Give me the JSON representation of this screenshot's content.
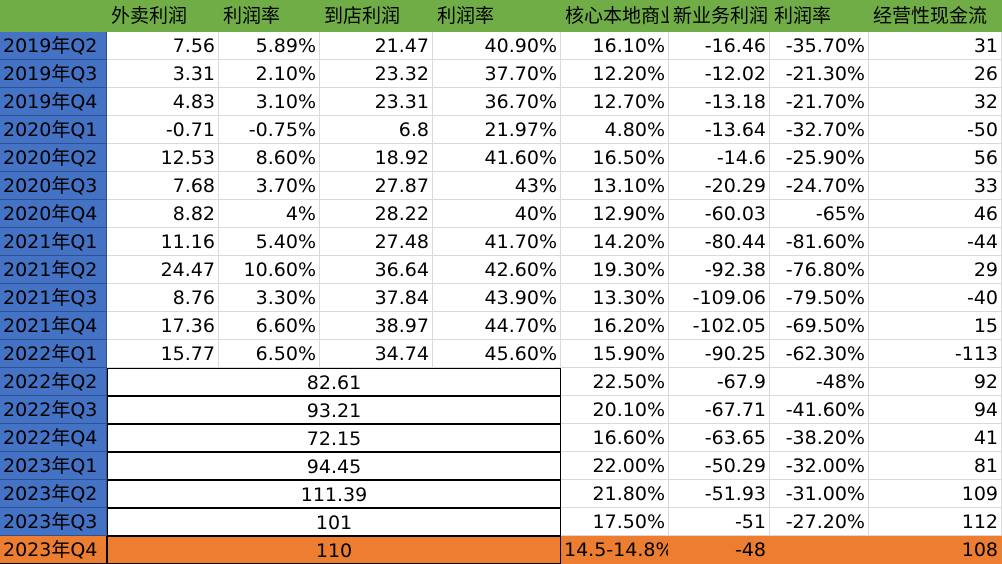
{
  "headers": [
    "外卖利润",
    "利润率",
    "到店利润",
    "利润率",
    "核心本地商业利润率",
    "新业务利润",
    "利润率",
    "经营性现金流"
  ],
  "rows": [
    {
      "label": "2019年Q2",
      "c": [
        "7.56",
        "5.89%",
        "21.47",
        "40.90%",
        "16.10%",
        "-16.46",
        "-35.70%",
        "31"
      ]
    },
    {
      "label": "2019年Q3",
      "c": [
        "3.31",
        "2.10%",
        "23.32",
        "37.70%",
        "12.20%",
        "-12.02",
        "-21.30%",
        "26"
      ]
    },
    {
      "label": "2019年Q4",
      "c": [
        "4.83",
        "3.10%",
        "23.31",
        "36.70%",
        "12.70%",
        "-13.18",
        "-21.70%",
        "32"
      ]
    },
    {
      "label": "2020年Q1",
      "c": [
        "-0.71",
        "-0.75%",
        "6.8",
        "21.97%",
        "4.80%",
        "-13.64",
        "-32.70%",
        "-50"
      ]
    },
    {
      "label": "2020年Q2",
      "c": [
        "12.53",
        "8.60%",
        "18.92",
        "41.60%",
        "16.50%",
        "-14.6",
        "-25.90%",
        "56"
      ]
    },
    {
      "label": "2020年Q3",
      "c": [
        "7.68",
        "3.70%",
        "27.87",
        "43%",
        "13.10%",
        "-20.29",
        "-24.70%",
        "33"
      ]
    },
    {
      "label": "2020年Q4",
      "c": [
        "8.82",
        "4%",
        "28.22",
        "40%",
        "12.90%",
        "-60.03",
        "-65%",
        "46"
      ]
    },
    {
      "label": "2021年Q1",
      "c": [
        "11.16",
        "5.40%",
        "27.48",
        "41.70%",
        "14.20%",
        "-80.44",
        "-81.60%",
        "-44"
      ]
    },
    {
      "label": "2021年Q2",
      "c": [
        "24.47",
        "10.60%",
        "36.64",
        "42.60%",
        "19.30%",
        "-92.38",
        "-76.80%",
        "29"
      ]
    },
    {
      "label": "2021年Q3",
      "c": [
        "8.76",
        "3.30%",
        "37.84",
        "43.90%",
        "13.30%",
        "-109.06",
        "-79.50%",
        "-40"
      ]
    },
    {
      "label": "2021年Q4",
      "c": [
        "17.36",
        "6.60%",
        "38.97",
        "44.70%",
        "16.20%",
        "-102.05",
        "-69.50%",
        "15"
      ]
    },
    {
      "label": "2022年Q1",
      "c": [
        "15.77",
        "6.50%",
        "34.74",
        "45.60%",
        "15.90%",
        "-90.25",
        "-62.30%",
        "-113"
      ]
    },
    {
      "label": "2022年Q2",
      "merged": "82.61",
      "c": [
        "22.50%",
        "-67.9",
        "-48%",
        "92"
      ]
    },
    {
      "label": "2022年Q3",
      "merged": "93.21",
      "c": [
        "20.10%",
        "-67.71",
        "-41.60%",
        "94"
      ]
    },
    {
      "label": "2022年Q4",
      "merged": "72.15",
      "c": [
        "16.60%",
        "-63.65",
        "-38.20%",
        "41"
      ]
    },
    {
      "label": "2023年Q1",
      "merged": "94.45",
      "c": [
        "22.00%",
        "-50.29",
        "-32.00%",
        "81"
      ]
    },
    {
      "label": "2023年Q2",
      "merged": "111.39",
      "c": [
        "21.80%",
        "-51.93",
        "-31.00%",
        "109"
      ]
    },
    {
      "label": "2023年Q3",
      "merged": "101",
      "c": [
        "17.50%",
        "-51",
        "-27.20%",
        "112"
      ]
    },
    {
      "label": "2023年Q4",
      "merged": "110",
      "c": [
        "14.5-14.8%",
        "-48",
        "",
        "108"
      ],
      "highlight": true
    }
  ]
}
